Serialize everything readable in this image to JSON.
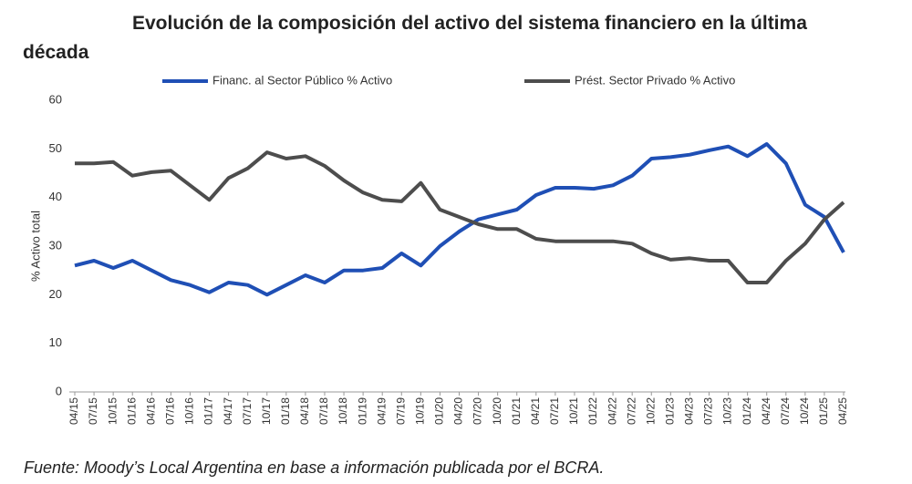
{
  "chart_data": {
    "type": "line",
    "title": "Evolución de la composición del activo del sistema financiero en la última década",
    "source": "Fuente: Moody’s Local Argentina en base a información publicada por el BCRA.",
    "y_label": "% Activo total",
    "categories": [
      "04/15",
      "07/15",
      "10/15",
      "01/16",
      "04/16",
      "07/16",
      "10/16",
      "01/17",
      "04/17",
      "07/17",
      "10/17",
      "01/18",
      "04/18",
      "07/18",
      "10/18",
      "01/19",
      "04/19",
      "07/19",
      "10/19",
      "01/20",
      "04/20",
      "07/20",
      "10/20",
      "01/21",
      "04/21",
      "07/21",
      "10/21",
      "01/22",
      "04/22",
      "07/22",
      "10/22",
      "01/23",
      "04/23",
      "07/23",
      "10/23",
      "01/24",
      "04/24",
      "07/24",
      "10/24",
      "01/25",
      "04/25"
    ],
    "series": [
      {
        "name": "Financ. al Sector Público % Activo",
        "color": "#1f4fb5",
        "values": [
          26,
          27,
          25.5,
          27,
          25,
          23,
          22,
          20.5,
          22.5,
          22,
          20,
          22,
          24,
          22.5,
          25,
          25,
          25.5,
          28.5,
          26,
          30,
          33,
          35.5,
          36.5,
          37.5,
          40.5,
          42,
          42,
          41.8,
          42.5,
          44.5,
          48,
          48.3,
          48.8,
          49.7,
          50.5,
          48.5,
          51,
          47,
          38.5,
          36,
          28.7
        ]
      },
      {
        "name": "Prést. Sector Privado % Activo",
        "color": "#4d4d4d",
        "values": [
          47,
          47,
          47.3,
          44.5,
          45.2,
          45.5,
          42.5,
          39.5,
          44,
          46,
          49.3,
          48,
          48.5,
          46.5,
          43.5,
          41,
          39.5,
          39.2,
          43,
          37.5,
          36,
          34.5,
          33.5,
          33.5,
          31.5,
          31,
          31,
          31,
          31,
          30.5,
          28.5,
          27.2,
          27.5,
          27,
          27,
          22.5,
          22.5,
          27,
          30.5,
          35.5,
          39
        ]
      }
    ],
    "ylim": [
      0,
      60
    ],
    "yticks": [
      0,
      10,
      20,
      30,
      40,
      50,
      60
    ],
    "grid": false,
    "legend": "top"
  }
}
